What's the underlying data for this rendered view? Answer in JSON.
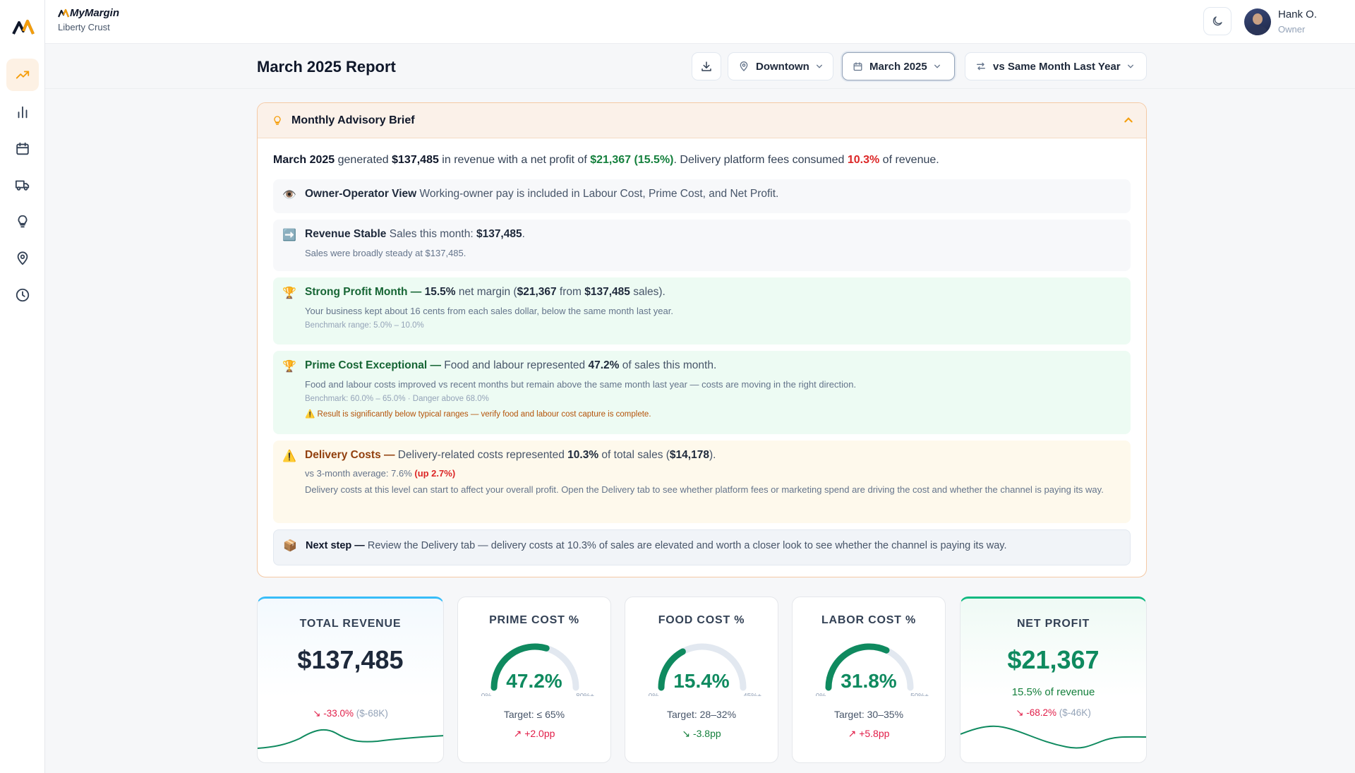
{
  "brand": {
    "name": "MyMargin",
    "restaurant": "Liberty Crust"
  },
  "user": {
    "name": "Hank O.",
    "role": "Owner"
  },
  "sidebar": {
    "items": [
      "trending-up-icon",
      "bar-chart-icon",
      "calendar-icon",
      "truck-icon",
      "lightbulb-icon",
      "map-pin-icon",
      "clock-icon"
    ],
    "active": 0
  },
  "report": {
    "title": "March 2025 Report",
    "location": "Downtown",
    "month": "March 2025",
    "comparison": "vs Same Month Last Year"
  },
  "advisory": {
    "title": "Monthly Advisory Brief",
    "summary": {
      "month": "March 2025",
      "generated": " generated ",
      "revenue": "$137,485",
      "mid1": " in revenue with a net profit of ",
      "profit": "$21,367 (15.5%)",
      "mid2": ". Delivery platform fees consumed ",
      "fees": "10.3%",
      "end": " of revenue."
    },
    "owner": {
      "title": "Owner-Operator View",
      "text": " Working-owner pay is included in Labour Cost, Prime Cost, and Net Profit."
    },
    "revenue": {
      "title": "Revenue Stable",
      "text": " Sales this month: ",
      "value": "$137,485",
      "end": ".",
      "sub": "Sales were broadly steady at $137,485."
    },
    "profit": {
      "title": "Strong Profit Month —",
      "pct": "15.5%",
      "text1": " net margin (",
      "value": "$21,367",
      "text2": " from ",
      "sales": "$137,485",
      "text3": " sales).",
      "sub": "Your business kept about 16 cents from each sales dollar, below the same month last year.",
      "bench": "Benchmark range: 5.0% – 10.0%"
    },
    "prime": {
      "title": "Prime Cost Exceptional —",
      "text1": " Food and labour represented ",
      "pct": "47.2%",
      "text2": " of sales this month.",
      "sub": "Food and labour costs improved vs recent months but remain above the same month last year — costs are moving in the right direction.",
      "bench": "Benchmark: 60.0% – 65.0% · Danger above 68.0%",
      "warn": "⚠️ Result is significantly below typical ranges — verify food and labour cost capture is complete."
    },
    "delivery": {
      "title": "Delivery Costs —",
      "text1": " Delivery-related costs represented ",
      "pct": "10.3%",
      "text2": " of total sales (",
      "value": "$14,178",
      "text3": ").",
      "avg": "vs 3-month average: 7.6% ",
      "up": "(up 2.7%)",
      "sub": "Delivery costs at this level can start to affect your overall profit. Open the Delivery tab to see whether platform fees or marketing spend are driving the cost and whether the channel is paying its way."
    },
    "next": {
      "title": "Next step —",
      "text": " Review the Delivery tab — delivery costs at 10.3% of sales are elevated and worth a closer look to see whether the channel is paying its way."
    }
  },
  "kpis": {
    "revenue": {
      "label": "TOTAL REVENUE",
      "value": "$137,485",
      "delta": "-33.0%",
      "delta_abs": "($-68K)"
    },
    "prime": {
      "label": "PRIME COST %",
      "value": "47.2%",
      "percent": 47.2,
      "max": 80,
      "min_label": "0%",
      "max_label": "80%+",
      "target": "Target: ≤ 65%",
      "delta": "+2.0pp"
    },
    "food": {
      "label": "FOOD COST %",
      "value": "15.4%",
      "percent": 15.4,
      "max": 45,
      "min_label": "0%",
      "max_label": "45%+",
      "target": "Target: 28–32%",
      "delta": "-3.8pp"
    },
    "labor": {
      "label": "LABOR COST %",
      "value": "31.8%",
      "percent": 31.8,
      "max": 50,
      "min_label": "0%",
      "max_label": "50%+",
      "target": "Target: 30–35%",
      "delta": "+5.8pp"
    },
    "profit": {
      "label": "NET PROFIT",
      "value": "$21,367",
      "sub": "15.5% of revenue",
      "delta": "-68.2%",
      "delta_abs": "($-46K)"
    }
  },
  "colors": {
    "accent": "#f59e0b",
    "green": "#0f8a5f",
    "red": "#e11d48",
    "gauge_track": "#e2e8f0"
  }
}
